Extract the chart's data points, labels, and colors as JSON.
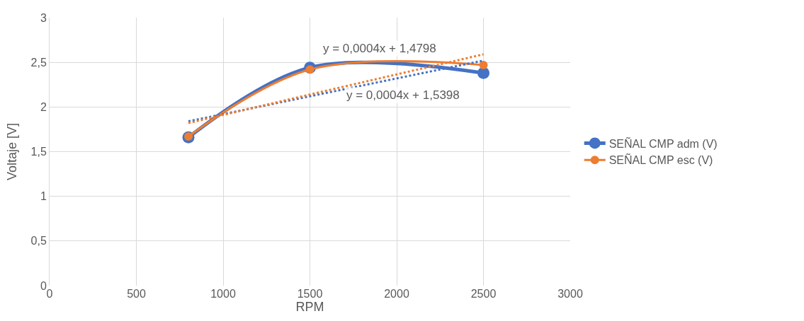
{
  "chart_data": {
    "type": "line",
    "xlabel": "RPM",
    "ylabel": "Voltaje [V]",
    "xlim": [
      0,
      3000
    ],
    "xticks": [
      0,
      500,
      1000,
      1500,
      2000,
      2500,
      3000
    ],
    "ylim": [
      0,
      3
    ],
    "yticks": [
      {
        "value": 0,
        "label": "0"
      },
      {
        "value": 0.5,
        "label": "0,5"
      },
      {
        "value": 1,
        "label": "1"
      },
      {
        "value": 1.5,
        "label": "1,5"
      },
      {
        "value": 2,
        "label": "2"
      },
      {
        "value": 2.5,
        "label": "2,5"
      },
      {
        "value": 3,
        "label": "3"
      }
    ],
    "grid": true,
    "legend": "right",
    "marker": "circle",
    "line_style": "solid",
    "x": [
      800,
      1500,
      2500
    ],
    "series": [
      {
        "name": "SEÑAL CMP adm (V)",
        "color": "#4472c4",
        "values": [
          1.66,
          2.44,
          2.38
        ]
      },
      {
        "name": "SEÑAL CMP esc (V)",
        "color": "#ed7d31",
        "values": [
          1.67,
          2.42,
          2.47
        ]
      },
      {
        "color": "#4472c4",
        "values": [
          1.84,
          2.12,
          2.52
        ],
        "line_style": "dotted",
        "marker": "none"
      },
      {
        "color": "#ed7d31",
        "values": [
          1.82,
          2.14,
          2.59
        ],
        "line_style": "dotted",
        "marker": "none"
      }
    ],
    "annotations": [
      "y = 0,0004x + 1,4798",
      "y = 0,0004x + 1,5398"
    ]
  }
}
